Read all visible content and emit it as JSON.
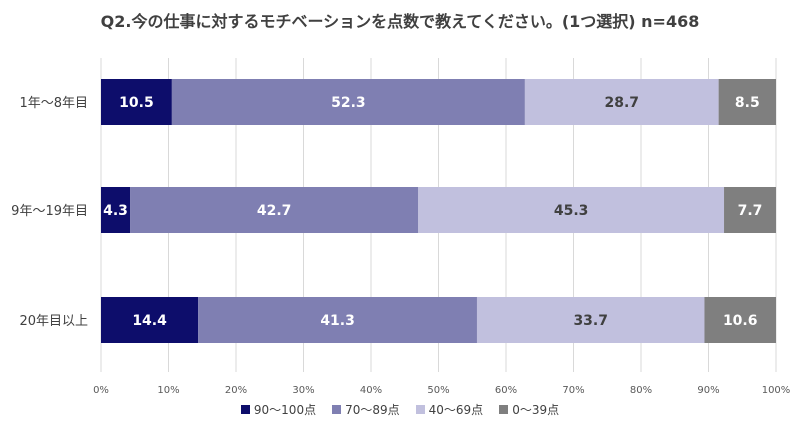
{
  "chart_data": {
    "type": "bar",
    "orientation": "horizontal",
    "stacked": true,
    "title": "Q2.今の仕事に対するモチベーションを点数で教えてください。(1つ選択) n=468",
    "categories": [
      "1年～8年目",
      "9年～19年目",
      "20年目以上"
    ],
    "series": [
      {
        "name": "90～100点",
        "color": "#0d0d6b",
        "values": [
          10.5,
          4.3,
          14.4
        ]
      },
      {
        "name": "70～89点",
        "color": "#7f7fb2",
        "values": [
          52.3,
          42.7,
          41.3
        ]
      },
      {
        "name": "40～69点",
        "color": "#c1c0de",
        "values": [
          28.7,
          45.3,
          33.7
        ]
      },
      {
        "name": "0～39点",
        "color": "#7f7f7f",
        "values": [
          8.5,
          7.7,
          10.6
        ]
      }
    ],
    "label_colors": [
      "#ffffff",
      "#ffffff",
      "#404040",
      "#ffffff"
    ],
    "x_ticks": [
      "0%",
      "10%",
      "20%",
      "30%",
      "40%",
      "50%",
      "60%",
      "70%",
      "80%",
      "90%",
      "100%"
    ],
    "xlim": [
      0,
      100
    ],
    "grid": true,
    "legend_position": "bottom"
  }
}
